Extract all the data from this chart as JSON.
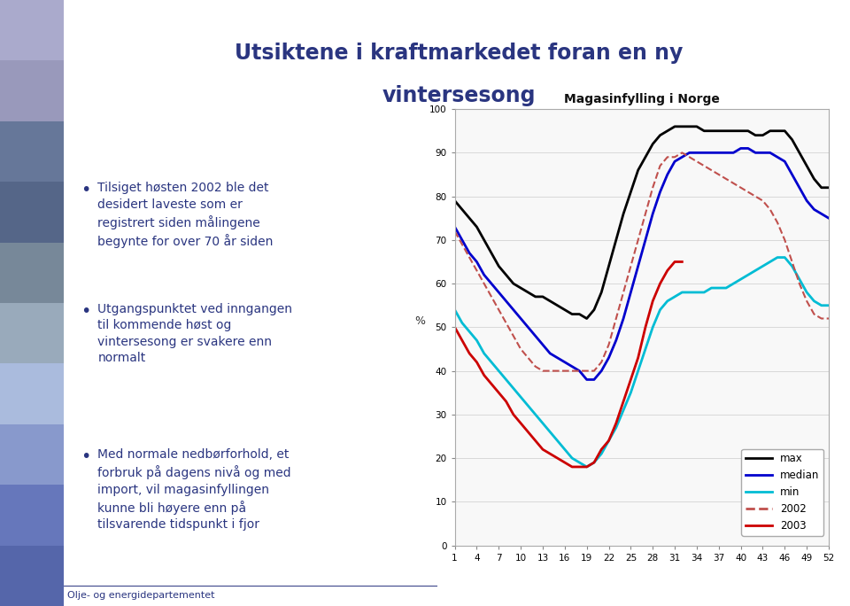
{
  "title_line1": "Utsiktene i kraftmarkedet foran en ny",
  "title_line2": "vintersesong",
  "chart_title": "Magasinfylling i Norge",
  "ylabel": "%",
  "xlim": [
    1,
    52
  ],
  "ylim": [
    0,
    100
  ],
  "xticks": [
    1,
    4,
    7,
    10,
    13,
    16,
    19,
    22,
    25,
    28,
    31,
    34,
    37,
    40,
    43,
    46,
    49,
    52
  ],
  "yticks": [
    0,
    10,
    20,
    30,
    40,
    50,
    60,
    70,
    80,
    90,
    100
  ],
  "background_color": "#ffffff",
  "title_color": "#2a3580",
  "bullet_color": "#2a3580",
  "bullet_texts": [
    "Tilsiget høsten 2002 ble det\ndesidert laveste som er\nregistrert siden målingene\nbegynte for over 70 år siden",
    "Utgangspunktet ved inngangen\ntil kommende høst og\nvintersesong er svakere enn\nnormalt",
    "Med normale nedbørforhold, et\nforbruk på dagens nivå og med\nimport, vil magasinfyllingen\nkunne bli høyere enn på\ntilsvarende tidspunkt i fjor"
  ],
  "footer": "Olje- og energidepartementet",
  "series": {
    "max": {
      "color": "#000000",
      "linestyle": "-",
      "linewidth": 2.0,
      "x": [
        1,
        2,
        3,
        4,
        5,
        6,
        7,
        8,
        9,
        10,
        11,
        12,
        13,
        14,
        15,
        16,
        17,
        18,
        19,
        20,
        21,
        22,
        23,
        24,
        25,
        26,
        27,
        28,
        29,
        30,
        31,
        32,
        33,
        34,
        35,
        36,
        37,
        38,
        39,
        40,
        41,
        42,
        43,
        44,
        45,
        46,
        47,
        48,
        49,
        50,
        51,
        52
      ],
      "y": [
        79,
        77,
        75,
        73,
        70,
        67,
        64,
        62,
        60,
        59,
        58,
        57,
        57,
        56,
        55,
        54,
        53,
        53,
        52,
        54,
        58,
        64,
        70,
        76,
        81,
        86,
        89,
        92,
        94,
        95,
        96,
        96,
        96,
        96,
        95,
        95,
        95,
        95,
        95,
        95,
        95,
        94,
        94,
        95,
        95,
        95,
        93,
        90,
        87,
        84,
        82,
        82
      ]
    },
    "median": {
      "color": "#0000cd",
      "linestyle": "-",
      "linewidth": 2.0,
      "x": [
        1,
        2,
        3,
        4,
        5,
        6,
        7,
        8,
        9,
        10,
        11,
        12,
        13,
        14,
        15,
        16,
        17,
        18,
        19,
        20,
        21,
        22,
        23,
        24,
        25,
        26,
        27,
        28,
        29,
        30,
        31,
        32,
        33,
        34,
        35,
        36,
        37,
        38,
        39,
        40,
        41,
        42,
        43,
        44,
        45,
        46,
        47,
        48,
        49,
        50,
        51,
        52
      ],
      "y": [
        73,
        70,
        67,
        65,
        62,
        60,
        58,
        56,
        54,
        52,
        50,
        48,
        46,
        44,
        43,
        42,
        41,
        40,
        38,
        38,
        40,
        43,
        47,
        52,
        58,
        64,
        70,
        76,
        81,
        85,
        88,
        89,
        90,
        90,
        90,
        90,
        90,
        90,
        90,
        91,
        91,
        90,
        90,
        90,
        89,
        88,
        85,
        82,
        79,
        77,
        76,
        75
      ]
    },
    "min": {
      "color": "#00bcd4",
      "linestyle": "-",
      "linewidth": 2.0,
      "x": [
        1,
        2,
        3,
        4,
        5,
        6,
        7,
        8,
        9,
        10,
        11,
        12,
        13,
        14,
        15,
        16,
        17,
        18,
        19,
        20,
        21,
        22,
        23,
        24,
        25,
        26,
        27,
        28,
        29,
        30,
        31,
        32,
        33,
        34,
        35,
        36,
        37,
        38,
        39,
        40,
        41,
        42,
        43,
        44,
        45,
        46,
        47,
        48,
        49,
        50,
        51,
        52
      ],
      "y": [
        54,
        51,
        49,
        47,
        44,
        42,
        40,
        38,
        36,
        34,
        32,
        30,
        28,
        26,
        24,
        22,
        20,
        19,
        18,
        19,
        21,
        24,
        27,
        31,
        35,
        40,
        45,
        50,
        54,
        56,
        57,
        58,
        58,
        58,
        58,
        59,
        59,
        59,
        60,
        61,
        62,
        63,
        64,
        65,
        66,
        66,
        64,
        61,
        58,
        56,
        55,
        55
      ]
    },
    "2002": {
      "color": "#c0504d",
      "linestyle": "--",
      "linewidth": 1.5,
      "x": [
        1,
        2,
        3,
        4,
        5,
        6,
        7,
        8,
        9,
        10,
        11,
        12,
        13,
        14,
        15,
        16,
        17,
        18,
        19,
        20,
        21,
        22,
        23,
        24,
        25,
        26,
        27,
        28,
        29,
        30,
        31,
        32,
        33,
        34,
        35,
        36,
        37,
        38,
        39,
        40,
        41,
        42,
        43,
        44,
        45,
        46,
        47,
        48,
        49,
        50,
        51,
        52
      ],
      "y": [
        72,
        69,
        66,
        63,
        60,
        57,
        54,
        51,
        48,
        45,
        43,
        41,
        40,
        40,
        40,
        40,
        40,
        40,
        40,
        40,
        42,
        46,
        52,
        58,
        64,
        70,
        76,
        82,
        87,
        89,
        89,
        90,
        89,
        88,
        87,
        86,
        85,
        84,
        83,
        82,
        81,
        80,
        79,
        77,
        74,
        70,
        65,
        60,
        56,
        53,
        52,
        52
      ]
    },
    "2003": {
      "color": "#cc0000",
      "linestyle": "-",
      "linewidth": 2.0,
      "x": [
        1,
        2,
        3,
        4,
        5,
        6,
        7,
        8,
        9,
        10,
        11,
        12,
        13,
        14,
        15,
        16,
        17,
        18,
        19,
        20,
        21,
        22,
        23,
        24,
        25,
        26,
        27,
        28,
        29,
        30,
        31,
        32
      ],
      "y": [
        50,
        47,
        44,
        42,
        39,
        37,
        35,
        33,
        30,
        28,
        26,
        24,
        22,
        21,
        20,
        19,
        18,
        18,
        18,
        19,
        22,
        24,
        28,
        33,
        38,
        43,
        50,
        56,
        60,
        63,
        65,
        65
      ]
    }
  },
  "legend_entries": [
    "max",
    "median",
    "min",
    "2002",
    "2003"
  ],
  "legend_colors": [
    "#000000",
    "#0000cd",
    "#00bcd4",
    "#c0504d",
    "#cc0000"
  ],
  "legend_linestyles": [
    "-",
    "-",
    "-",
    "--",
    "-"
  ],
  "photo_strip_color": "#7a8fbb",
  "chart_border_color": "#aaaaaa",
  "chart_bg": "#f8f8f8"
}
